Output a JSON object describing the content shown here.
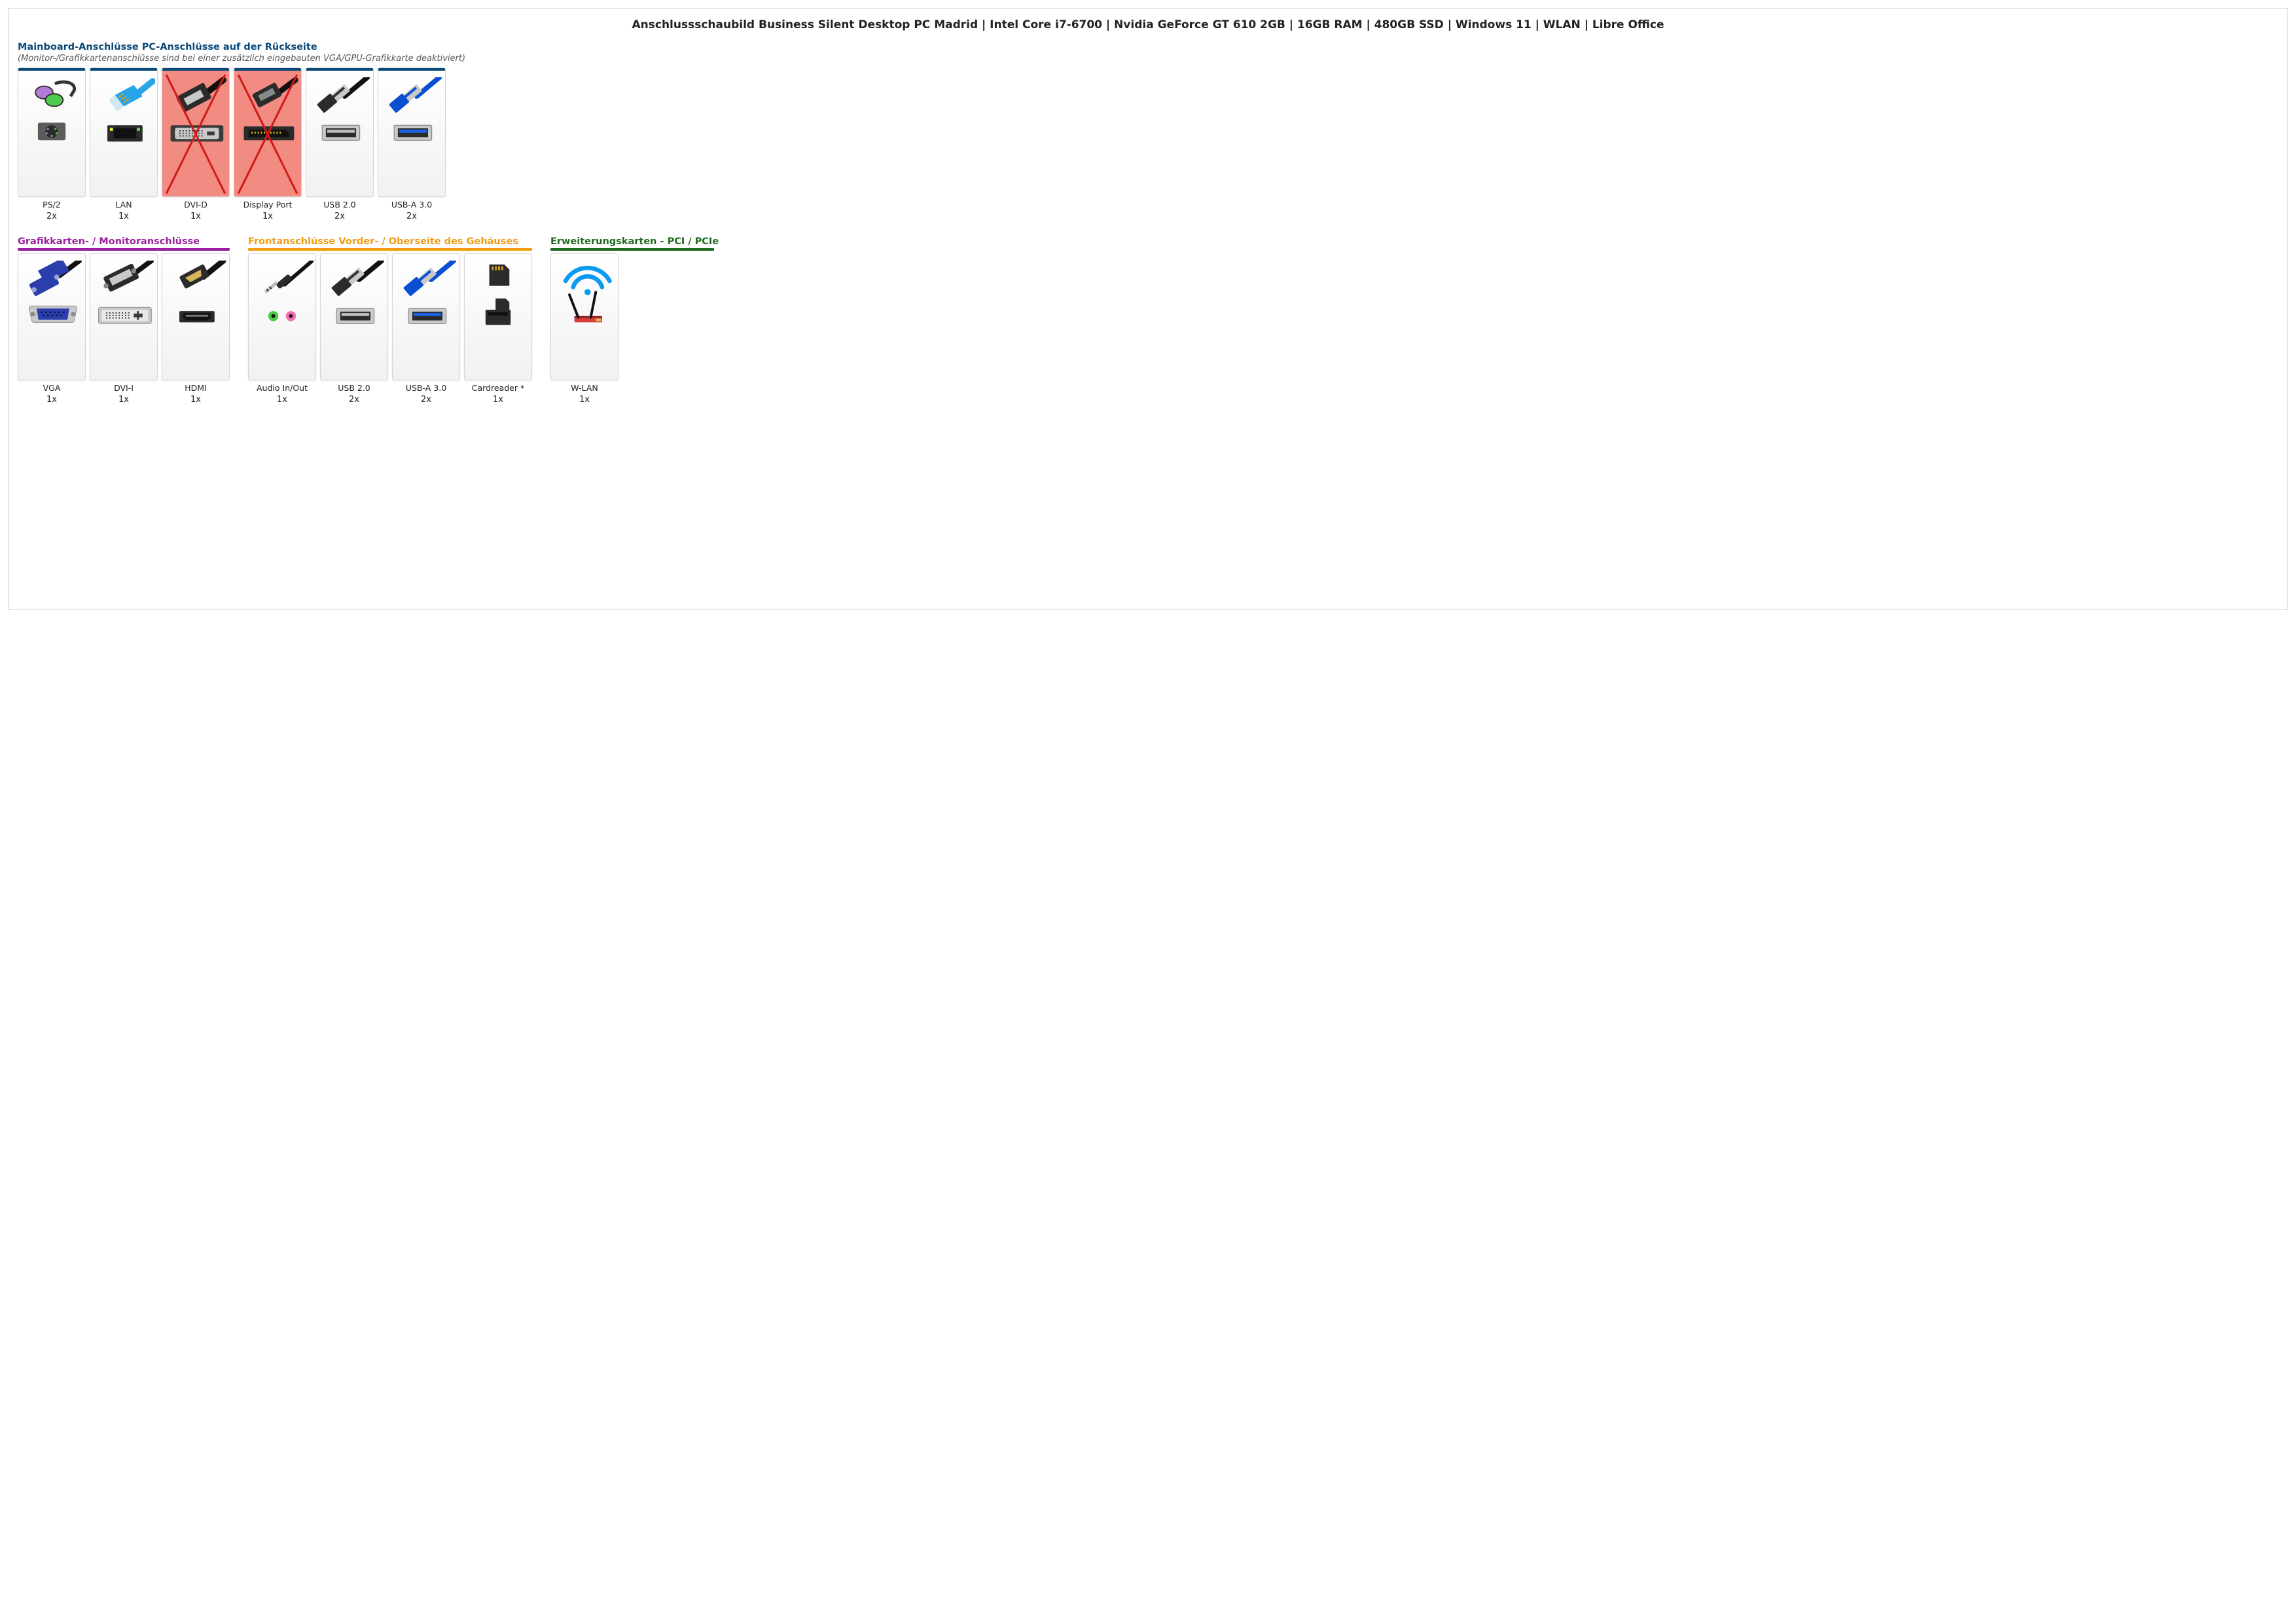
{
  "title": "Anschlussschaubild Business Silent Desktop PC Madrid | Intel Core i7-6700 | Nvidia GeForce GT 610 2GB | 16GB RAM | 480GB SSD | Windows 11 | WLAN | Libre Office",
  "colors": {
    "mainboard": "#0a4a7a",
    "gpu": "#9b1fa0",
    "front": "#f29c11",
    "pcie": "#1f6b1f",
    "card_border": "#d6d6d6",
    "disabled_bg": "#f28b82",
    "disabled_x": "#d11a1a"
  },
  "sections": {
    "mainboard": {
      "title": "Mainboard-Anschlüsse PC-Anschlüsse auf der Rückseite",
      "subtitle": "(Monitor-/Grafikkartenanschlüsse sind bei einer zusätzlich eingebauten VGA/GPU-Grafikkarte deaktiviert)",
      "items": [
        {
          "icon": "ps2",
          "label": "PS/2",
          "count": "2x",
          "disabled": false
        },
        {
          "icon": "lan",
          "label": "LAN",
          "count": "1x",
          "disabled": false
        },
        {
          "icon": "dvid",
          "label": "DVI-D",
          "count": "1x",
          "disabled": true
        },
        {
          "icon": "dp",
          "label": "Display Port",
          "count": "1x",
          "disabled": true
        },
        {
          "icon": "usb2",
          "label": "USB 2.0",
          "count": "2x",
          "disabled": false
        },
        {
          "icon": "usb3",
          "label": "USB-A 3.0",
          "count": "2x",
          "disabled": false
        }
      ]
    },
    "gpu": {
      "title": "Grafikkarten- / Monitoranschlüsse",
      "items": [
        {
          "icon": "vga",
          "label": "VGA",
          "count": "1x"
        },
        {
          "icon": "dvii",
          "label": "DVI-I",
          "count": "1x"
        },
        {
          "icon": "hdmi",
          "label": "HDMI",
          "count": "1x"
        }
      ]
    },
    "front": {
      "title": "Frontanschlüsse Vorder- / Oberseite des Gehäuses",
      "items": [
        {
          "icon": "audio",
          "label": "Audio In/Out",
          "count": "1x"
        },
        {
          "icon": "usb2",
          "label": "USB 2.0",
          "count": "2x"
        },
        {
          "icon": "usb3",
          "label": "USB-A 3.0",
          "count": "2x"
        },
        {
          "icon": "card",
          "label": "Cardreader *",
          "count": "1x"
        }
      ]
    },
    "pcie": {
      "title": "Erweiterungskarten - PCI / PCIe",
      "items": [
        {
          "icon": "wlan",
          "label": "W-LAN",
          "count": "1x"
        }
      ]
    }
  }
}
